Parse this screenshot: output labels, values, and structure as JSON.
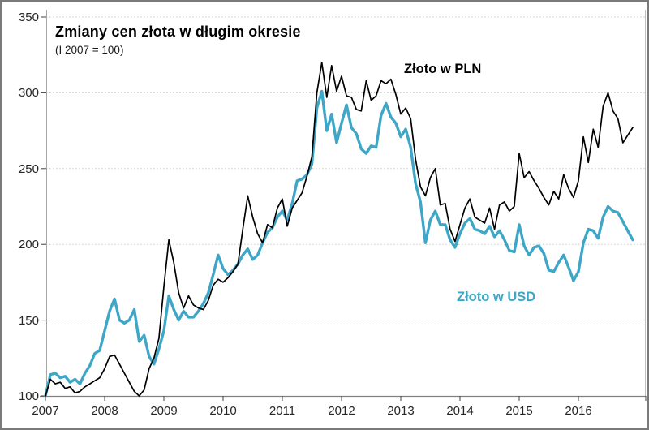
{
  "chart": {
    "title": "Zmiany cen złota w długim okresie",
    "subtitle": "(I 2007 = 100)",
    "pln_label": "Złoto w PLN",
    "usd_label": "Złoto w USD"
  },
  "chart_data": {
    "type": "line",
    "title": "Zmiany cen złota w długim okresie",
    "subtitle": "(I 2007 = 100)",
    "x_unit": "monthly from 2007-01 to 2016-12",
    "x_tick_labels": [
      "2007",
      "2008",
      "2009",
      "2010",
      "2011",
      "2012",
      "2013",
      "2014",
      "2015",
      "2016"
    ],
    "y_ticks": [
      100,
      150,
      200,
      250,
      300,
      350
    ],
    "ylim": [
      100,
      350
    ],
    "grid": "dotted horizontal gridlines at 150-350",
    "legend_position": "inline annotations",
    "colors": {
      "pln": "#000000",
      "usd": "#3EA6C6",
      "grid": "#c6c6c6",
      "axis": "#808080"
    },
    "series": [
      {
        "name": "Złoto w PLN",
        "color": "#000000",
        "width": 1.7,
        "values": [
          100,
          111,
          108,
          109,
          105,
          106,
          102,
          103,
          106,
          108,
          110,
          112,
          118,
          126,
          127,
          121,
          115,
          109,
          103,
          100,
          104,
          118,
          125,
          138,
          172,
          203,
          188,
          168,
          158,
          166,
          160,
          158,
          157,
          163,
          173,
          177,
          175,
          178,
          182,
          187,
          210,
          232,
          218,
          207,
          201,
          213,
          211,
          224,
          230,
          212,
          224,
          229,
          234,
          245,
          258,
          300,
          320,
          297,
          318,
          301,
          311,
          298,
          297,
          289,
          288,
          308,
          295,
          298,
          308,
          306,
          309,
          299,
          286,
          290,
          283,
          256,
          238,
          232,
          244,
          250,
          226,
          227,
          210,
          202,
          213,
          224,
          230,
          218,
          216,
          214,
          224,
          210,
          226,
          228,
          222,
          225,
          260,
          244,
          248,
          242,
          237,
          231,
          226,
          235,
          230,
          246,
          237,
          231,
          242,
          271,
          254,
          276,
          264,
          291,
          300,
          288,
          283,
          267,
          272,
          277
        ]
      },
      {
        "name": "Złoto w USD",
        "color": "#3EA6C6",
        "width": 3.4,
        "values": [
          100,
          114,
          115,
          112,
          113,
          109,
          111,
          108,
          115,
          120,
          128,
          130,
          143,
          156,
          164,
          150,
          148,
          150,
          157,
          136,
          140,
          126,
          121,
          131,
          143,
          166,
          157,
          150,
          156,
          152,
          152,
          156,
          161,
          168,
          180,
          193,
          184,
          180,
          183,
          187,
          193,
          197,
          190,
          193,
          201,
          208,
          211,
          218,
          222,
          216,
          227,
          242,
          243,
          246,
          253,
          290,
          301,
          275,
          286,
          267,
          280,
          292,
          277,
          273,
          263,
          260,
          265,
          264,
          285,
          293,
          284,
          280,
          271,
          276,
          264,
          240,
          228,
          201,
          216,
          222,
          213,
          213,
          203,
          198,
          207,
          214,
          217,
          210,
          209,
          207,
          212,
          205,
          209,
          203,
          196,
          195,
          213,
          199,
          193,
          198,
          199,
          194,
          183,
          182,
          188,
          193,
          185,
          176,
          182,
          201,
          210,
          209,
          204,
          218,
          225,
          222,
          221,
          215,
          209,
          203
        ]
      }
    ],
    "annotations": [
      {
        "text": "Złoto w PLN",
        "x": 2013.05,
        "y": 315,
        "color": "#000000"
      },
      {
        "text": "Złoto w USD",
        "x": 2013.95,
        "y": 164,
        "color": "#3EA6C6"
      }
    ]
  }
}
